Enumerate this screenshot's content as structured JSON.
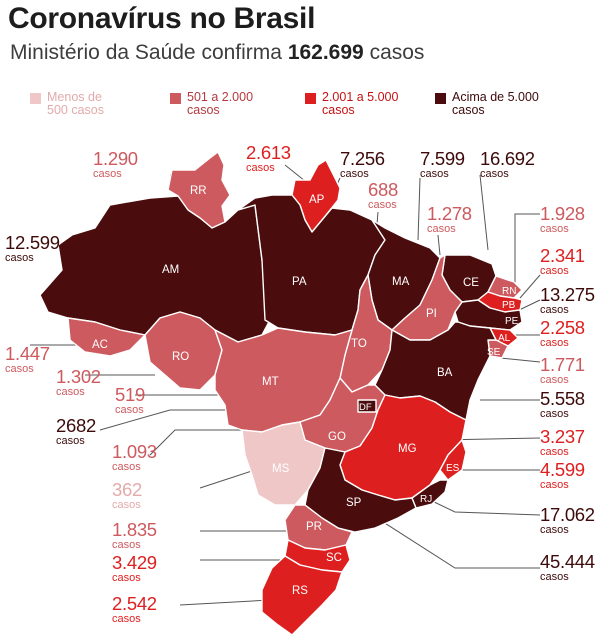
{
  "header": {
    "title": "Coronavírus no Brasil",
    "subtitle_prefix": "Ministério da Saúde confirma ",
    "subtitle_value": "162.699",
    "subtitle_suffix": " casos"
  },
  "colors": {
    "tier1": "#f0c7c7",
    "tier2": "#cd5a5f",
    "tier3": "#de1f1f",
    "tier4": "#4a0c0c"
  },
  "legend": [
    {
      "label": "Menos de\n500 casos",
      "color": "#f0c7c7"
    },
    {
      "label": "501 a 2.000\ncasos",
      "color": "#cd5a5f"
    },
    {
      "label": "2.001 a 5.000\ncasos",
      "color": "#de1f1f"
    },
    {
      "label": "Acima de 5.000\ncasos",
      "color": "#4a0c0c"
    }
  ],
  "unit": "casos",
  "states": {
    "RR": {
      "abbr": "RR",
      "cases": "1.290"
    },
    "AP": {
      "abbr": "AP",
      "cases": "2.613"
    },
    "AM": {
      "abbr": "AM",
      "cases": "12.599"
    },
    "PA": {
      "abbr": "PA",
      "cases": "7.256"
    },
    "MA": {
      "abbr": "MA",
      "cases": "7.599"
    },
    "CE": {
      "abbr": "CE",
      "cases": "16.692"
    },
    "TO": {
      "abbr": "TO",
      "cases": "688"
    },
    "PI": {
      "abbr": "PI",
      "cases": "1.278"
    },
    "RN": {
      "abbr": "RN",
      "cases": "1.928"
    },
    "PB": {
      "abbr": "PB",
      "cases": "2.341"
    },
    "PE": {
      "abbr": "PE",
      "cases": "13.275"
    },
    "AL": {
      "abbr": "AL",
      "cases": "2.258"
    },
    "SE": {
      "abbr": "SE",
      "cases": "1.771"
    },
    "AC": {
      "abbr": "AC",
      "cases": "1.447"
    },
    "RO": {
      "abbr": "RO",
      "cases": "1.302"
    },
    "MT": {
      "abbr": "MT",
      "cases": "519"
    },
    "BA": {
      "abbr": "BA",
      "cases": "5.558"
    },
    "DF": {
      "abbr": "DF",
      "cases": "2682"
    },
    "GO": {
      "abbr": "GO",
      "cases": "1.093"
    },
    "MG": {
      "abbr": "MG",
      "cases": "3.237"
    },
    "ES": {
      "abbr": "ES",
      "cases": "4.599"
    },
    "MS": {
      "abbr": "MS",
      "cases": "362"
    },
    "RJ": {
      "abbr": "RJ",
      "cases": "17.062"
    },
    "SP": {
      "abbr": "SP",
      "cases": "45.444"
    },
    "PR": {
      "abbr": "PR",
      "cases": "1.835"
    },
    "SC": {
      "abbr": "SC",
      "cases": "3.429"
    },
    "RS": {
      "abbr": "RS",
      "cases": "2.542"
    }
  }
}
